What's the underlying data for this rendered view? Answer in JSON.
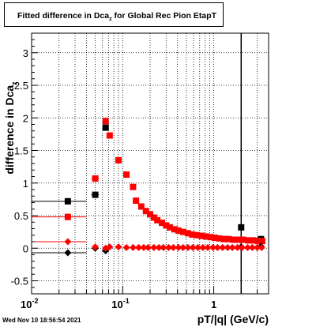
{
  "title": {
    "main": "Fitted difference in Dca",
    "subscript": "z",
    "suffix": "  for Global Rec Pion EtapT"
  },
  "axes": {
    "ylabel_main": "difference in Dca",
    "ylabel_sub": "z",
    "xlabel": "pT/|q| (GeV/c)"
  },
  "footer": {
    "datestamp": "Wed Nov 10 18:56:54 2021"
  },
  "chart_data": {
    "type": "scatter",
    "x_scale": "log",
    "xlim": [
      0.01,
      4.0
    ],
    "ylim": [
      -0.7,
      3.3
    ],
    "y_ticks": [
      -0.5,
      0,
      0.5,
      1,
      1.5,
      2,
      2.5,
      3
    ],
    "y_tick_labels": [
      "-0.5",
      "0",
      "0.5",
      "1",
      "1.5",
      "2",
      "2.5",
      "3"
    ],
    "x_major_ticks": [
      0.01,
      0.1,
      1
    ],
    "x_tick_labels": [
      {
        "base": "10",
        "exp": "-2"
      },
      {
        "base": "10",
        "exp": "-1"
      },
      {
        "base": "1",
        "exp": ""
      }
    ],
    "grid": true,
    "vertical_marker_x": 2.0,
    "series": [
      {
        "marker": "square",
        "color": "#000000",
        "points": [
          {
            "x": 0.025,
            "y": 0.72,
            "xerr": [
              0.01,
              0.04
            ],
            "yerr": 0.05
          },
          {
            "x": 0.05,
            "y": 0.82,
            "xerr": [
              0.045,
              0.055
            ],
            "yerr": 0.05
          },
          {
            "x": 0.065,
            "y": 1.85
          },
          {
            "x": 2.0,
            "y": 0.32
          },
          {
            "x": 3.3,
            "y": 0.14
          }
        ]
      },
      {
        "marker": "square",
        "color": "#ff0000",
        "points": [
          {
            "x": 0.025,
            "y": 0.48,
            "xerr": [
              0.01,
              0.04
            ],
            "yerr": 0.05
          },
          {
            "x": 0.05,
            "y": 1.07,
            "xerr": [
              0.045,
              0.055
            ],
            "yerr": 0.05
          },
          {
            "x": 0.065,
            "y": 1.95
          },
          {
            "x": 0.072,
            "y": 1.73
          },
          {
            "x": 0.09,
            "y": 1.35
          },
          {
            "x": 0.11,
            "y": 1.13
          },
          {
            "x": 0.13,
            "y": 0.94
          },
          {
            "x": 0.14,
            "y": 0.73
          },
          {
            "x": 0.16,
            "y": 0.64
          },
          {
            "x": 0.18,
            "y": 0.57
          },
          {
            "x": 0.2,
            "y": 0.52
          },
          {
            "x": 0.22,
            "y": 0.47
          },
          {
            "x": 0.24,
            "y": 0.43
          },
          {
            "x": 0.27,
            "y": 0.39
          },
          {
            "x": 0.3,
            "y": 0.35
          },
          {
            "x": 0.33,
            "y": 0.32
          },
          {
            "x": 0.37,
            "y": 0.29
          },
          {
            "x": 0.41,
            "y": 0.27
          },
          {
            "x": 0.46,
            "y": 0.25
          },
          {
            "x": 0.52,
            "y": 0.23
          },
          {
            "x": 0.58,
            "y": 0.21
          },
          {
            "x": 0.65,
            "y": 0.2
          },
          {
            "x": 0.73,
            "y": 0.19
          },
          {
            "x": 0.82,
            "y": 0.18
          },
          {
            "x": 0.92,
            "y": 0.17
          },
          {
            "x": 1.03,
            "y": 0.16
          },
          {
            "x": 1.15,
            "y": 0.15
          },
          {
            "x": 1.3,
            "y": 0.14
          },
          {
            "x": 1.45,
            "y": 0.14
          },
          {
            "x": 1.65,
            "y": 0.13
          },
          {
            "x": 1.85,
            "y": 0.13
          },
          {
            "x": 2.1,
            "y": 0.13
          },
          {
            "x": 2.4,
            "y": 0.12
          },
          {
            "x": 2.7,
            "y": 0.12
          },
          {
            "x": 3.05,
            "y": 0.11
          },
          {
            "x": 3.4,
            "y": 0.11
          }
        ]
      },
      {
        "marker": "diamond",
        "color": "#000000",
        "points": [
          {
            "x": 0.025,
            "y": -0.07,
            "xerr": [
              0.01,
              0.04
            ]
          },
          {
            "x": 0.05,
            "y": 0.0
          },
          {
            "x": 0.065,
            "y": -0.04
          },
          {
            "x": 2.0,
            "y": 0.02
          },
          {
            "x": 3.3,
            "y": 0.03
          }
        ]
      },
      {
        "marker": "diamond",
        "color": "#ff0000",
        "points": [
          {
            "x": 0.025,
            "y": 0.1,
            "xerr": [
              0.01,
              0.04
            ]
          },
          {
            "x": 0.05,
            "y": 0.02
          },
          {
            "x": 0.065,
            "y": 0.0
          },
          {
            "x": 0.072,
            "y": 0.02
          },
          {
            "x": 0.09,
            "y": 0.02
          },
          {
            "x": 0.11,
            "y": 0.01
          },
          {
            "x": 0.13,
            "y": 0.01
          },
          {
            "x": 0.15,
            "y": 0.01
          },
          {
            "x": 0.17,
            "y": 0.01
          },
          {
            "x": 0.19,
            "y": 0.01
          },
          {
            "x": 0.22,
            "y": 0.01
          },
          {
            "x": 0.25,
            "y": 0.01
          },
          {
            "x": 0.28,
            "y": 0.01
          },
          {
            "x": 0.32,
            "y": 0.01
          },
          {
            "x": 0.36,
            "y": 0.01
          },
          {
            "x": 0.41,
            "y": 0.01
          },
          {
            "x": 0.46,
            "y": 0.01
          },
          {
            "x": 0.52,
            "y": 0.01
          },
          {
            "x": 0.59,
            "y": 0.01
          },
          {
            "x": 0.67,
            "y": 0.01
          },
          {
            "x": 0.76,
            "y": 0.01
          },
          {
            "x": 0.86,
            "y": 0.01
          },
          {
            "x": 0.98,
            "y": 0.01
          },
          {
            "x": 1.1,
            "y": 0.01
          },
          {
            "x": 1.25,
            "y": 0.01
          },
          {
            "x": 1.42,
            "y": 0.01
          },
          {
            "x": 1.6,
            "y": 0.01
          },
          {
            "x": 1.82,
            "y": 0.01
          },
          {
            "x": 2.05,
            "y": 0.01
          },
          {
            "x": 2.35,
            "y": 0.01
          },
          {
            "x": 2.65,
            "y": 0.01
          },
          {
            "x": 3.0,
            "y": 0.01
          },
          {
            "x": 3.35,
            "y": 0.01
          }
        ]
      }
    ]
  }
}
